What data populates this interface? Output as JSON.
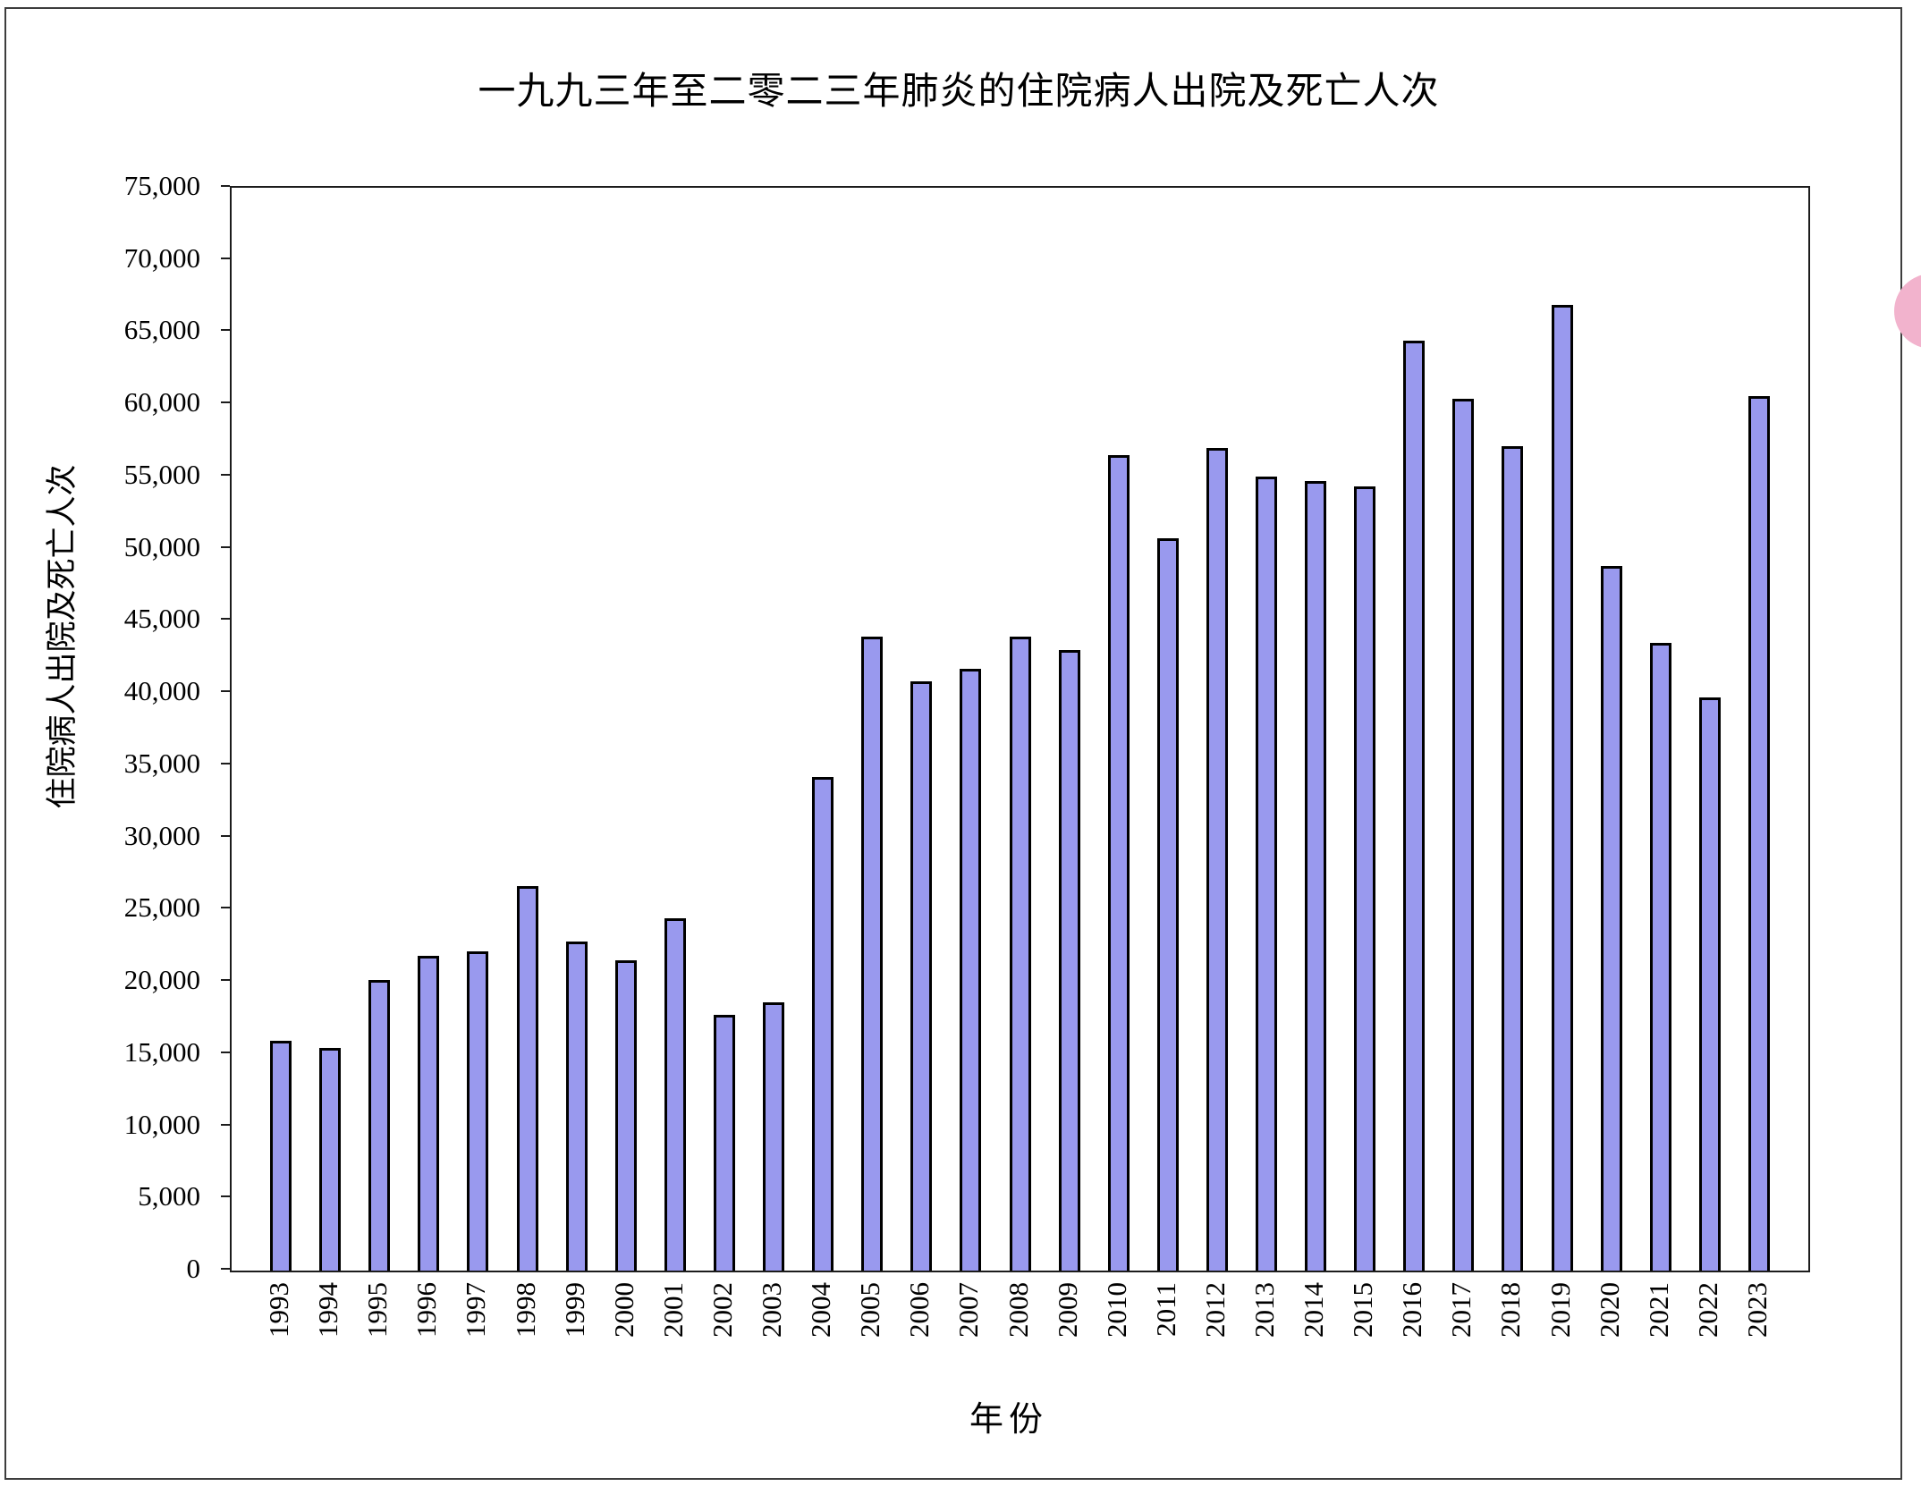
{
  "page": {
    "background": "#ffffff",
    "frame_color": "#3d3d3d"
  },
  "chart_data": {
    "type": "bar",
    "title": "一九九三年至二零二三年肺炎的住院病人出院及死亡人次",
    "xlabel": "年份",
    "ylabel": "住院病人出院及死亡人次",
    "categories": [
      "1993",
      "1994",
      "1995",
      "1996",
      "1997",
      "1998",
      "1999",
      "2000",
      "2001",
      "2002",
      "2003",
      "2004",
      "2005",
      "2006",
      "2007",
      "2008",
      "2009",
      "2010",
      "2011",
      "2012",
      "2013",
      "2014",
      "2015",
      "2016",
      "2017",
      "2018",
      "2019",
      "2020",
      "2021",
      "2022",
      "2023"
    ],
    "values": [
      15900,
      15400,
      20100,
      21800,
      22100,
      26600,
      22800,
      21500,
      24400,
      17700,
      18600,
      34200,
      43900,
      40800,
      41700,
      43900,
      43000,
      56500,
      50700,
      57000,
      55000,
      54700,
      54300,
      64400,
      60400,
      57100,
      66900,
      48800,
      43500,
      39700,
      60600
    ],
    "ylim": [
      0,
      75000
    ],
    "ytick_step": 5000,
    "ytick_labels": [
      "0",
      "5,000",
      "10,000",
      "15,000",
      "20,000",
      "25,000",
      "30,000",
      "35,000",
      "40,000",
      "45,000",
      "50,000",
      "55,000",
      "60,000",
      "65,000",
      "70,000",
      "75,000"
    ],
    "grid": false,
    "legend_position": "none",
    "bar_fill_color": "#9999EE",
    "bar_border_color": "#000000",
    "axis_color": "#1c1c1c"
  },
  "decorations": {
    "pink_dot_color": "#F2B3CD"
  }
}
